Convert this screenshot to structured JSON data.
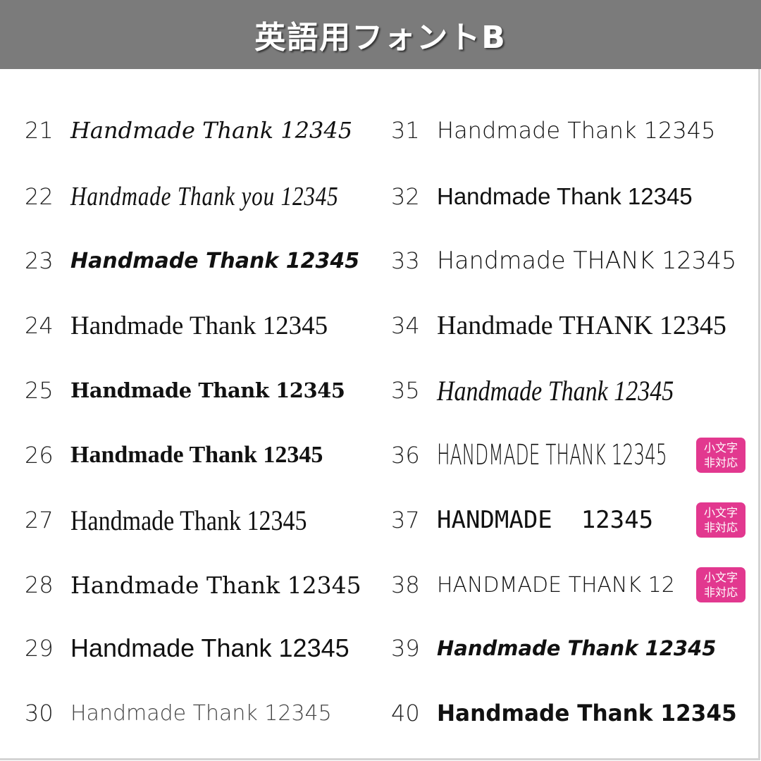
{
  "header": {
    "title": "英語用フォントB"
  },
  "badge_text": [
    "小文字",
    "非対応"
  ],
  "colors": {
    "header_bg": "#7b7b7b",
    "badge_bg": "#e2388f"
  },
  "left_fonts": [
    {
      "number": "21",
      "sample": "Handmade Thank 12345"
    },
    {
      "number": "22",
      "sample": "Handmade Thank you 12345"
    },
    {
      "number": "23",
      "sample": "Handmade Thank 12345"
    },
    {
      "number": "24",
      "sample": "Handmade Thank 12345"
    },
    {
      "number": "25",
      "sample": "Handmade Thank 12345"
    },
    {
      "number": "26",
      "sample": "Handmade Thank 12345"
    },
    {
      "number": "27",
      "sample": "Handmade Thank 12345"
    },
    {
      "number": "28",
      "sample": "Handmade Thank 12345"
    },
    {
      "number": "29",
      "sample": "Handmade Thank 12345"
    },
    {
      "number": "30",
      "sample": "Handmade Thank 12345"
    }
  ],
  "right_fonts": [
    {
      "number": "31",
      "sample": "Handmade Thank 12345"
    },
    {
      "number": "32",
      "sample": "Handmade Thank 12345"
    },
    {
      "number": "33",
      "sample": "Handmade THANK 12345"
    },
    {
      "number": "34",
      "sample": "Handmade THANK 12345"
    },
    {
      "number": "35",
      "sample": "Handmade Thank 12345"
    },
    {
      "number": "36",
      "sample": "HANDMADE THANK 12345",
      "lowercase_unsupported": true
    },
    {
      "number": "37",
      "sample": "HANDMADE  12345",
      "lowercase_unsupported": true
    },
    {
      "number": "38",
      "sample": "HANDMADE THANK 12",
      "lowercase_unsupported": true
    },
    {
      "number": "39",
      "sample": "Handmade Thank 12345"
    },
    {
      "number": "40",
      "sample": "Handmade Thank 12345"
    }
  ]
}
